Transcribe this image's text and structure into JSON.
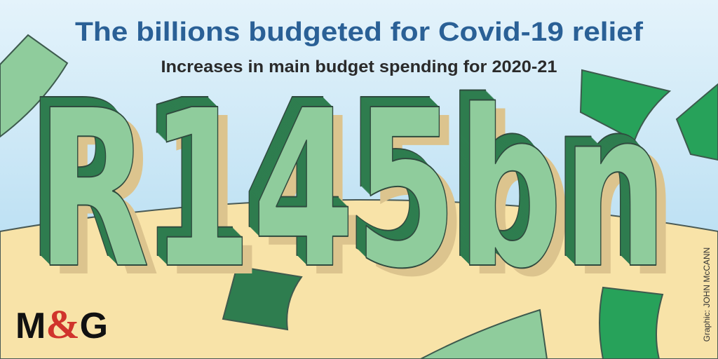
{
  "header": {
    "title": "The billions budgeted for Covid-19 relief",
    "subtitle": "Increases in main budget spending for 2020-21"
  },
  "figure": {
    "amount": "R145bn"
  },
  "footer": {
    "logo": [
      "M",
      "&",
      "G"
    ],
    "credit": "Graphic: JOHN McCANN"
  }
}
